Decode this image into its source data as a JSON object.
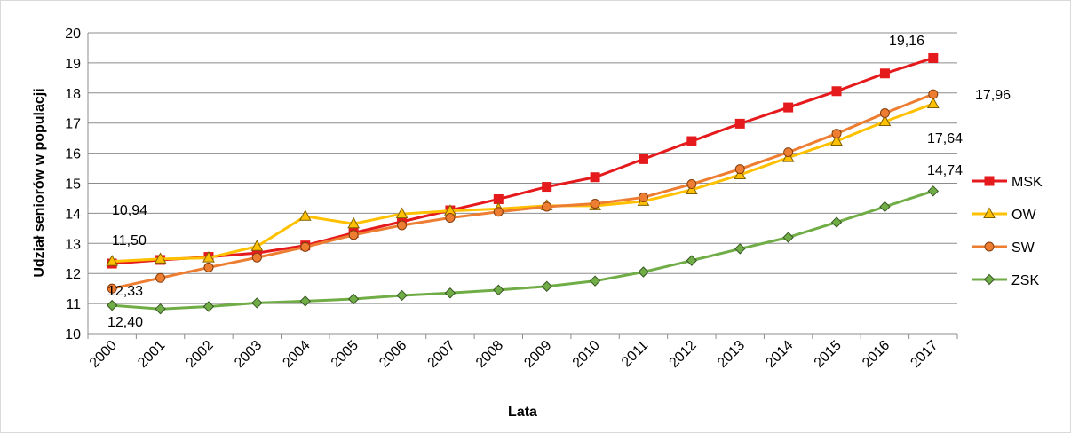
{
  "chart_data": {
    "type": "line",
    "xlabel": "Lata",
    "ylabel": "Udział seniorów w populacji",
    "ylim": [
      10,
      20
    ],
    "yticks": [
      10,
      11,
      12,
      13,
      14,
      15,
      16,
      17,
      18,
      19,
      20
    ],
    "grid": true,
    "legend_position": "right",
    "categories": [
      "2000",
      "2001",
      "2002",
      "2003",
      "2004",
      "2005",
      "2006",
      "2007",
      "2008",
      "2009",
      "2010",
      "2011",
      "2012",
      "2013",
      "2014",
      "2015",
      "2016",
      "2017"
    ],
    "series": [
      {
        "name": "MSK",
        "color": "#e41a1c",
        "marker": "square",
        "values": [
          12.33,
          12.45,
          12.55,
          12.68,
          12.93,
          13.35,
          13.72,
          14.1,
          14.47,
          14.88,
          15.2,
          15.8,
          16.4,
          16.98,
          17.52,
          18.06,
          18.65,
          19.16
        ]
      },
      {
        "name": "OW",
        "color": "#ffc000",
        "marker": "triangle",
        "values": [
          12.4,
          12.48,
          12.52,
          12.9,
          13.9,
          13.65,
          13.98,
          14.08,
          14.15,
          14.25,
          14.25,
          14.4,
          14.78,
          15.28,
          15.85,
          16.4,
          17.05,
          17.64
        ]
      },
      {
        "name": "SW",
        "color": "#ed7d31",
        "marker": "circle",
        "values": [
          11.5,
          11.85,
          12.2,
          12.53,
          12.88,
          13.28,
          13.6,
          13.85,
          14.05,
          14.22,
          14.32,
          14.53,
          14.97,
          15.47,
          16.03,
          16.65,
          17.33,
          17.96
        ]
      },
      {
        "name": "ZSK",
        "color": "#70ad47",
        "marker": "diamond",
        "values": [
          10.94,
          10.82,
          10.9,
          11.02,
          11.08,
          11.15,
          11.27,
          11.35,
          11.45,
          11.57,
          11.75,
          12.05,
          12.43,
          12.82,
          13.2,
          13.7,
          14.22,
          14.74
        ]
      }
    ],
    "data_labels": [
      {
        "text": "10,94"
      },
      {
        "text": "11,50"
      },
      {
        "text": "12,33"
      },
      {
        "text": "12,40"
      },
      {
        "text": "19,16"
      },
      {
        "text": "17,96"
      },
      {
        "text": "17,64"
      },
      {
        "text": "14,74"
      }
    ]
  }
}
